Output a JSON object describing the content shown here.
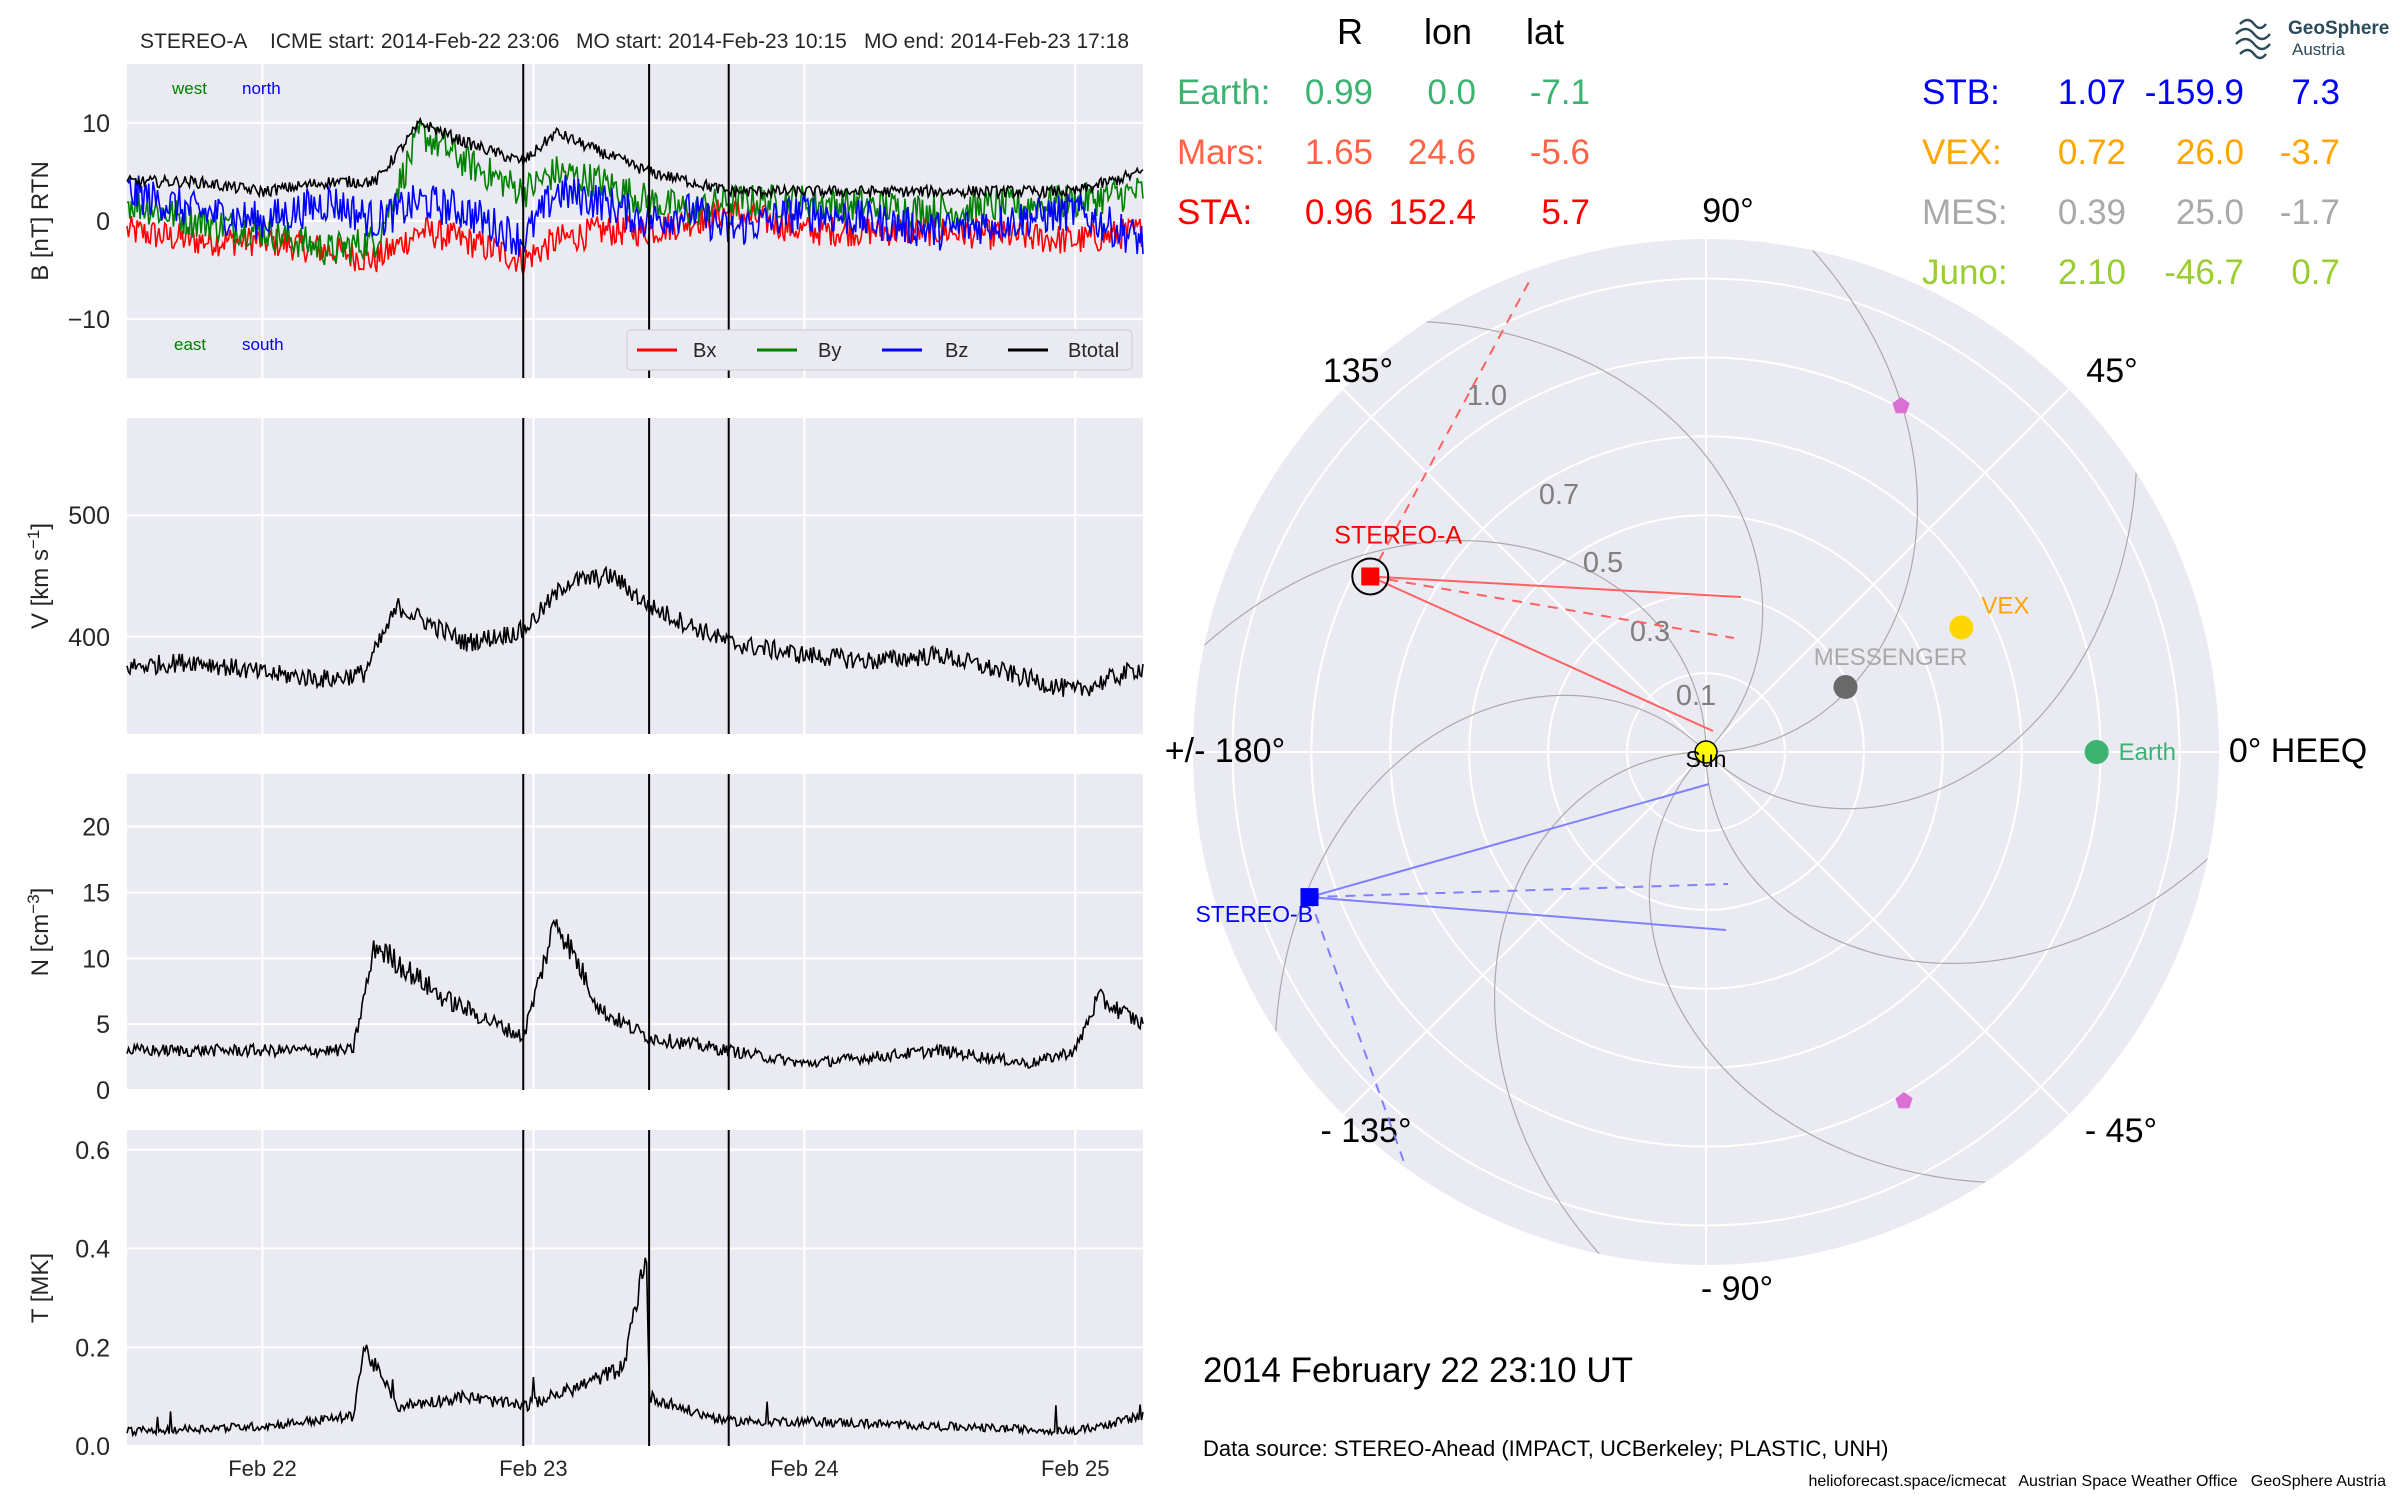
{
  "header": {
    "mission": "STEREO-A",
    "icme_start": "ICME start: 2014-Feb-22 23:06",
    "mo_start": "MO start: 2014-Feb-23 10:15",
    "mo_end": "MO end: 2014-Feb-23 17:18"
  },
  "timestamp": "2014 February 22  23:10 UT",
  "data_source": "Data source: STEREO-Ahead (IMPACT, UCBerkeley; PLASTIC, UNH)",
  "footer": "helioforecast.space/icmecat   Austrian Space Weather Office   GeoSphere Austria",
  "logo": {
    "line1": "GeoSphere",
    "line2": "Austria"
  },
  "colors": {
    "earth": "#3cb371",
    "mars": "#ff6347",
    "sta": "#ff0000",
    "stb": "#0000ff",
    "vex": "#ffa500",
    "mes": "#a9a9a9",
    "juno": "#9acd32",
    "panel_bg": "#eaeaf2"
  },
  "positions": {
    "headers": [
      "R",
      "lon",
      "lat"
    ],
    "left": [
      {
        "name": "Earth:",
        "R": "0.99",
        "lon": "0.0",
        "lat": "-7.1",
        "color": "#3cb371"
      },
      {
        "name": "Mars:",
        "R": "1.65",
        "lon": "24.6",
        "lat": "-5.6",
        "color": "#ff6347"
      },
      {
        "name": "STA:",
        "R": "0.96",
        "lon": "152.4",
        "lat": "5.7",
        "color": "#ff0000"
      }
    ],
    "right": [
      {
        "name": "STB:",
        "R": "1.07",
        "lon": "-159.9",
        "lat": "7.3",
        "color": "#0000ff"
      },
      {
        "name": "VEX:",
        "R": "0.72",
        "lon": "26.0",
        "lat": "-3.7",
        "color": "#ffa500"
      },
      {
        "name": "MES:",
        "R": "0.39",
        "lon": "25.0",
        "lat": "-1.7",
        "color": "#a9a9a9"
      },
      {
        "name": "Juno:",
        "R": "2.10",
        "lon": "-46.7",
        "lat": "0.7",
        "color": "#9acd32"
      }
    ]
  },
  "chart_data": [
    {
      "type": "line",
      "panel": "magnetic_field",
      "ylabel": "B [nT] RTN",
      "ylim": [
        -16,
        16
      ],
      "yticks": [
        "10",
        "0",
        "−10"
      ],
      "annotations": {
        "west": "west",
        "north": "north",
        "east": "east",
        "south": "south"
      },
      "legend": [
        "Bx",
        "By",
        "Bz",
        "Btotal"
      ],
      "legend_position": "lower-right",
      "x_range": [
        "2014-02-21 12:00",
        "2014-02-25 06:00"
      ],
      "series": [
        {
          "name": "Bx",
          "color": "#ff0000",
          "x": [
            "02-21 12:00",
            "02-21 18:00",
            "02-22 00:00",
            "02-22 06:00",
            "02-22 10:00",
            "02-22 14:00",
            "02-22 18:00",
            "02-22 23:06",
            "02-23 02:00",
            "02-23 06:00",
            "02-23 10:15",
            "02-23 14:00",
            "02-23 17:18",
            "02-24 00:00",
            "02-24 12:00",
            "02-25 00:00",
            "02-25 06:00"
          ],
          "values": [
            -1,
            -2,
            -2,
            -3,
            -4,
            -1,
            -2,
            -4,
            -2,
            -1,
            -1,
            0,
            1,
            -1,
            -1,
            -2,
            -1
          ]
        },
        {
          "name": "By",
          "color": "#008000",
          "x": [
            "02-21 12:00",
            "02-21 18:00",
            "02-22 00:00",
            "02-22 06:00",
            "02-22 10:00",
            "02-22 14:00",
            "02-22 18:00",
            "02-22 23:06",
            "02-23 02:00",
            "02-23 06:00",
            "02-23 10:15",
            "02-23 14:00",
            "02-23 17:18",
            "02-24 00:00",
            "02-24 12:00",
            "02-25 00:00",
            "02-25 06:00"
          ],
          "values": [
            2,
            0,
            -1,
            -3,
            -2,
            9,
            6,
            3,
            5,
            4,
            2,
            1,
            2,
            2,
            1,
            2,
            3
          ]
        },
        {
          "name": "Bz",
          "color": "#0000ff",
          "x": [
            "02-21 12:00",
            "02-21 18:00",
            "02-22 00:00",
            "02-22 06:00",
            "02-22 10:00",
            "02-22 14:00",
            "02-22 18:00",
            "02-22 23:06",
            "02-23 02:00",
            "02-23 06:00",
            "02-23 10:15",
            "02-23 14:00",
            "02-23 17:18",
            "02-24 00:00",
            "02-24 12:00",
            "02-25 00:00",
            "02-25 06:00"
          ],
          "values": [
            3,
            1,
            0,
            2,
            0,
            2,
            1,
            -2,
            3,
            2,
            0,
            1,
            -1,
            1,
            -1,
            1,
            -2
          ]
        },
        {
          "name": "Btotal",
          "color": "#000000",
          "x": [
            "02-21 12:00",
            "02-21 18:00",
            "02-22 00:00",
            "02-22 06:00",
            "02-22 10:00",
            "02-22 14:00",
            "02-22 18:00",
            "02-22 23:06",
            "02-23 02:00",
            "02-23 06:00",
            "02-23 10:15",
            "02-23 14:00",
            "02-23 17:18",
            "02-24 00:00",
            "02-24 12:00",
            "02-25 00:00",
            "02-25 06:00"
          ],
          "values": [
            4,
            4,
            3,
            4,
            4,
            10,
            8,
            6,
            9,
            7,
            5,
            4,
            3,
            3,
            3,
            3,
            5
          ]
        }
      ]
    },
    {
      "type": "line",
      "panel": "speed",
      "ylabel": "V [km s−1]",
      "ylim": [
        320,
        580
      ],
      "yticks": [
        "500",
        "400"
      ],
      "series": [
        {
          "name": "V",
          "color": "#000000",
          "x": [
            "02-21 12:00",
            "02-21 18:00",
            "02-22 00:00",
            "02-22 06:00",
            "02-22 09:00",
            "02-22 12:00",
            "02-22 18:00",
            "02-22 23:06",
            "02-23 03:00",
            "02-23 07:00",
            "02-23 10:15",
            "02-23 17:18",
            "02-24 00:00",
            "02-24 06:00",
            "02-24 12:00",
            "02-24 18:00",
            "02-25 00:00",
            "02-25 06:00"
          ],
          "values": [
            375,
            380,
            370,
            365,
            370,
            425,
            395,
            405,
            445,
            450,
            425,
            395,
            385,
            380,
            385,
            370,
            355,
            375
          ]
        }
      ]
    },
    {
      "type": "line",
      "panel": "density",
      "ylabel": "N [cm−3]",
      "ylim": [
        0,
        24
      ],
      "yticks": [
        "20",
        "15",
        "10",
        "5",
        "0"
      ],
      "series": [
        {
          "name": "N",
          "color": "#000000",
          "x": [
            "02-21 12:00",
            "02-22 00:00",
            "02-22 08:00",
            "02-22 10:00",
            "02-22 16:00",
            "02-22 23:06",
            "02-23 02:00",
            "02-23 06:00",
            "02-23 10:15",
            "02-23 17:18",
            "02-24 00:00",
            "02-24 12:00",
            "02-24 20:00",
            "02-25 00:00",
            "02-25 02:00",
            "02-25 06:00"
          ],
          "values": [
            3,
            3,
            3,
            11,
            7,
            4,
            13,
            6,
            4,
            3,
            2,
            3,
            2,
            3,
            7,
            5
          ]
        }
      ]
    },
    {
      "type": "line",
      "panel": "temperature",
      "ylabel": "T [MK]",
      "ylim": [
        0,
        0.64
      ],
      "yticks": [
        "0.6",
        "0.4",
        "0.2",
        "0.0"
      ],
      "xticks": [
        "Feb 22",
        "Feb 23",
        "Feb 24",
        "Feb 25"
      ],
      "series": [
        {
          "name": "T",
          "color": "#000000",
          "x": [
            "02-21 12:00",
            "02-22 00:00",
            "02-22 08:00",
            "02-22 09:00",
            "02-22 12:00",
            "02-22 18:00",
            "02-22 23:06",
            "02-23 04:00",
            "02-23 08:00",
            "02-23 10:00",
            "02-23 10:15",
            "02-23 14:00",
            "02-23 17:18",
            "02-24 00:00",
            "02-24 12:00",
            "02-25 00:00",
            "02-25 06:00"
          ],
          "values": [
            0.03,
            0.04,
            0.06,
            0.2,
            0.08,
            0.1,
            0.08,
            0.12,
            0.16,
            0.4,
            0.1,
            0.07,
            0.05,
            0.05,
            0.04,
            0.03,
            0.06
          ]
        }
      ]
    },
    {
      "type": "scatter",
      "panel": "heeq_polar",
      "angle_labels": {
        "deg0": "0° HEEQ",
        "deg45": "45°",
        "deg90": "90°",
        "deg135": "135°",
        "deg180": "+/- 180°",
        "degm135": "- 135°",
        "degm90": "- 90°",
        "degm45": "- 45°"
      },
      "radial_ticks": [
        "0.1",
        "0.3",
        "0.5",
        "0.7",
        "1.0"
      ],
      "objects": [
        {
          "label": "Sun",
          "r": 0.0,
          "lon": 0.0,
          "color": "#ffff00"
        },
        {
          "label": "Earth",
          "r": 0.99,
          "lon": 0.0,
          "color": "#3cb371"
        },
        {
          "label": "VEX",
          "r": 0.72,
          "lon": 26.0,
          "color": "#ffd700"
        },
        {
          "label": "MESSENGER",
          "r": 0.39,
          "lon": 25.0,
          "color": "#696969"
        },
        {
          "label": "STEREO-A",
          "r": 0.96,
          "lon": 152.4,
          "color": "#ff0000"
        },
        {
          "label": "STEREO-B",
          "r": 1.07,
          "lon": -159.9,
          "color": "#0000ff"
        }
      ]
    }
  ]
}
